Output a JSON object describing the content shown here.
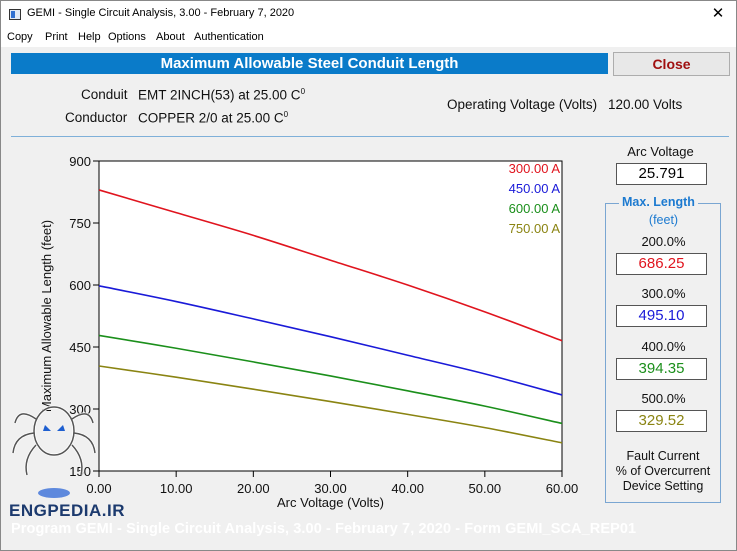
{
  "window": {
    "title": "GEMI - Single Circuit Analysis, 3.00 - February 7, 2020",
    "close_glyph": "✕"
  },
  "menu": [
    "Copy",
    "Print",
    "Help",
    "Options",
    "About",
    "Authentication"
  ],
  "header": {
    "title": "Maximum Allowable Steel Conduit Length",
    "close_label": "Close"
  },
  "info": {
    "conduit_label": "Conduit",
    "conduit_value": "EMT 2INCH(53) at 25.00 C",
    "conductor_label": "Conductor",
    "conductor_value": "COPPER 2/0 at 25.00 C",
    "degree_mark": "0",
    "operating_voltage_label": "Operating Voltage (Volts)",
    "operating_voltage_value": "120.00 Volts"
  },
  "side": {
    "arc_voltage_label": "Arc Voltage",
    "arc_voltage_value": "25.791",
    "max_length_title": "Max. Length",
    "max_length_unit": "(feet)",
    "rows": [
      {
        "pct": "200.0%",
        "value": "686.25",
        "color": "#e0141e"
      },
      {
        "pct": "300.0%",
        "value": "495.10",
        "color": "#1a1ad8"
      },
      {
        "pct": "400.0%",
        "value": "394.35",
        "color": "#1b8f1b"
      },
      {
        "pct": "500.0%",
        "value": "329.52",
        "color": "#8a8412"
      }
    ],
    "fault_line1": "Fault Current",
    "fault_line2": "% of Overcurrent",
    "fault_line3": "Device Setting"
  },
  "footer": {
    "text": "Program GEMI - Single Circuit Analysis, 3.00 - February 7, 2020 - Form GEMI_SCA_REP01"
  },
  "watermark": {
    "text": "ENGPEDIA.IR"
  },
  "chart_data": {
    "type": "line",
    "xlabel": "Arc Voltage (Volts)",
    "ylabel": "Maximum Allowable Length (feet)",
    "xlim": [
      0,
      60
    ],
    "ylim": [
      150,
      900
    ],
    "xticks": [
      0,
      10,
      20,
      30,
      40,
      50,
      60
    ],
    "xtick_labels": [
      "0.00",
      "10.00",
      "20.00",
      "30.00",
      "40.00",
      "50.00",
      "60.00"
    ],
    "yticks": [
      150,
      300,
      450,
      600,
      750,
      900
    ],
    "ytick_labels": [
      "150",
      "300",
      "450",
      "600",
      "750",
      "900"
    ],
    "grid": false,
    "legend_position": "top-right",
    "x": [
      0,
      10,
      20,
      30,
      40,
      50,
      60
    ],
    "series": [
      {
        "name": "300.00 A",
        "color": "#e0141e",
        "values": [
          830,
          775,
          720,
          660,
          600,
          535,
          465
        ]
      },
      {
        "name": "450.00 A",
        "color": "#1a1ad8",
        "values": [
          598,
          560,
          518,
          475,
          430,
          385,
          334
        ]
      },
      {
        "name": "600.00 A",
        "color": "#1b8f1b",
        "values": [
          478,
          447,
          414,
          380,
          344,
          307,
          265
        ]
      },
      {
        "name": "750.00 A",
        "color": "#8a8412",
        "values": [
          404,
          377,
          348,
          318,
          287,
          255,
          218
        ]
      }
    ]
  }
}
